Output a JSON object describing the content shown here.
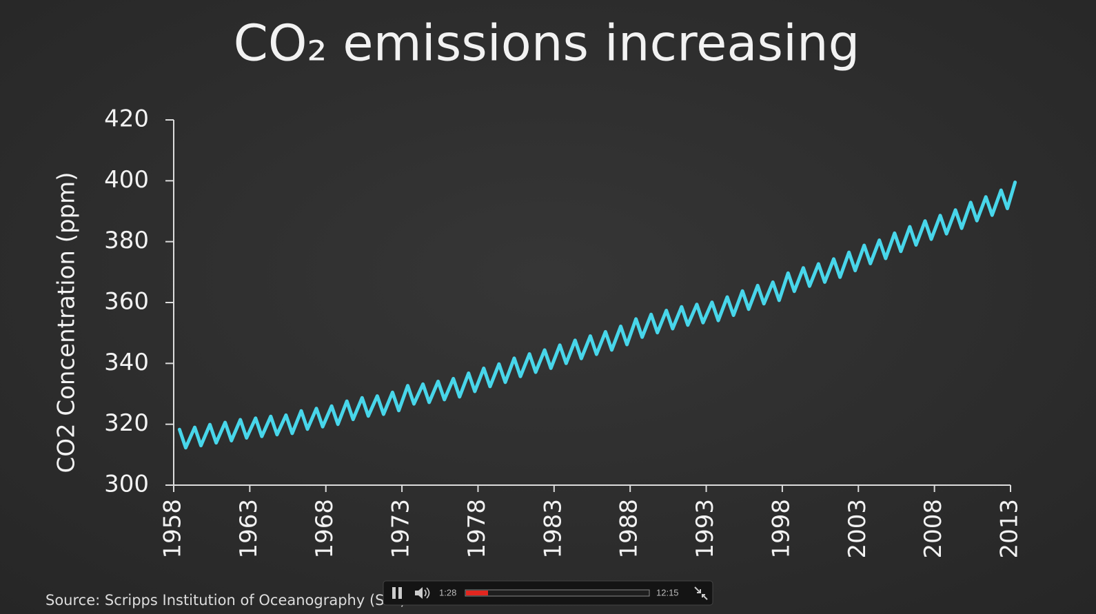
{
  "chart_data": {
    "type": "line",
    "title": "CO₂ emissions increasing",
    "y_label": "CO2 Concentration (ppm)",
    "source": "Source: Scripps Institution of Oceanography (SIO)",
    "color": "#48d6ea",
    "xlim": [
      1958,
      2013
    ],
    "xticks": [
      1958,
      1963,
      1968,
      1973,
      1978,
      1983,
      1988,
      1993,
      1998,
      2003,
      2008,
      2013
    ],
    "ylim": [
      300,
      420
    ],
    "yticks": [
      300,
      320,
      340,
      360,
      380,
      400,
      420
    ],
    "x": [
      1958.38,
      1958.79,
      1959.38,
      1959.79,
      1960.38,
      1960.79,
      1961.38,
      1961.79,
      1962.38,
      1962.79,
      1963.38,
      1963.79,
      1964.38,
      1964.79,
      1965.38,
      1965.79,
      1966.38,
      1966.79,
      1967.38,
      1967.79,
      1968.38,
      1968.79,
      1969.38,
      1969.79,
      1970.38,
      1970.79,
      1971.38,
      1971.79,
      1972.38,
      1972.79,
      1973.38,
      1973.79,
      1974.38,
      1974.79,
      1975.38,
      1975.79,
      1976.38,
      1976.79,
      1977.38,
      1977.79,
      1978.38,
      1978.79,
      1979.38,
      1979.79,
      1980.38,
      1980.79,
      1981.38,
      1981.79,
      1982.38,
      1982.79,
      1983.38,
      1983.79,
      1984.38,
      1984.79,
      1985.38,
      1985.79,
      1986.38,
      1986.79,
      1987.38,
      1987.79,
      1988.38,
      1988.79,
      1989.38,
      1989.79,
      1990.38,
      1990.79,
      1991.38,
      1991.79,
      1992.38,
      1992.79,
      1993.38,
      1993.79,
      1994.38,
      1994.79,
      1995.38,
      1995.79,
      1996.38,
      1996.79,
      1997.38,
      1997.79,
      1998.38,
      1998.79,
      1999.38,
      1999.79,
      2000.38,
      2000.79,
      2001.38,
      2001.79,
      2002.38,
      2002.79,
      2003.38,
      2003.79,
      2004.38,
      2004.79,
      2005.38,
      2005.79,
      2006.38,
      2006.79,
      2007.38,
      2007.79,
      2008.38,
      2008.79,
      2009.38,
      2009.79,
      2010.38,
      2010.79,
      2011.38,
      2011.79,
      2012.38,
      2012.79,
      2013.3
    ],
    "values": [
      318.3,
      312.3,
      319.0,
      313.0,
      319.9,
      313.9,
      320.6,
      314.6,
      321.5,
      315.5,
      322.0,
      316.0,
      322.6,
      316.6,
      323.0,
      317.0,
      324.4,
      318.4,
      325.2,
      319.2,
      326.0,
      320.0,
      327.6,
      321.6,
      328.7,
      322.7,
      329.3,
      323.3,
      330.5,
      324.5,
      332.7,
      326.7,
      333.2,
      327.2,
      334.1,
      328.1,
      335.0,
      329.0,
      336.8,
      330.8,
      338.4,
      332.4,
      339.8,
      333.8,
      341.7,
      335.7,
      343.1,
      337.1,
      344.4,
      338.4,
      346.0,
      340.0,
      347.6,
      341.6,
      349.0,
      343.0,
      350.4,
      344.4,
      352.2,
      346.2,
      354.6,
      348.6,
      356.1,
      350.1,
      357.4,
      351.4,
      358.6,
      352.6,
      359.4,
      353.4,
      360.1,
      354.1,
      361.8,
      355.8,
      363.8,
      357.8,
      365.6,
      359.6,
      366.7,
      360.7,
      369.7,
      363.7,
      371.4,
      365.4,
      372.7,
      366.7,
      374.3,
      368.3,
      376.5,
      370.5,
      378.8,
      372.8,
      380.5,
      374.5,
      382.8,
      376.8,
      384.9,
      378.9,
      386.8,
      380.8,
      388.6,
      382.6,
      390.4,
      384.4,
      392.9,
      386.9,
      394.7,
      388.7,
      396.9,
      390.9,
      399.5
    ]
  },
  "player": {
    "elapsed": "1:28",
    "duration": "12:15"
  }
}
